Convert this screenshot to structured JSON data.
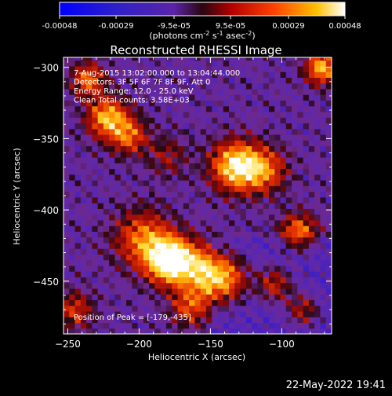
{
  "chart_data": {
    "type": "heatmap",
    "title": "Reconstructed RHESSI Image",
    "xlabel": "Heliocentric X (arcsec)",
    "ylabel": "Heliocentric Y (arcsec)",
    "xlim": [
      -253,
      -65
    ],
    "ylim": [
      -487,
      -293
    ],
    "x_ticks": [
      -250,
      -200,
      -150,
      -100
    ],
    "y_ticks": [
      -300,
      -350,
      -400,
      -450
    ],
    "colorbar": {
      "range": [
        -0.00048,
        0.00048
      ],
      "tick_values": [
        -0.00048,
        -0.00029,
        -9.5e-05,
        9.5e-05,
        0.00029,
        0.00048
      ],
      "tick_labels": [
        "-0.00048",
        "-0.00029",
        "-9.5e-05",
        "9.5e-05",
        "0.00029",
        "0.00048"
      ],
      "unit_label": "(photons cm",
      "unit_sup1": "-2",
      "unit_mid": " s",
      "unit_sup2": "-1",
      "unit_mid2": " asec",
      "unit_sup3": "-2",
      "unit_end": ")"
    },
    "info_lines": [
      "7-Aug-2015 13:02:00.000 to 13:04:44.000",
      "Detectors: 3F 5F 6F 7F 8F 9F, Att 0",
      "Energy Range: 12.0 - 25.0 keV",
      "Clean     Total counts: 3.58E+03"
    ],
    "peak_label": "Position of Peak = [-179,-435]",
    "peak": {
      "x": -179,
      "y": -435
    },
    "sources": [
      {
        "x": -179,
        "y": -435,
        "amp": 1.0,
        "sigma": 11
      },
      {
        "x": -197,
        "y": -420,
        "amp": 0.55,
        "sigma": 14
      },
      {
        "x": -142,
        "y": -448,
        "amp": 0.75,
        "sigma": 12
      },
      {
        "x": -160,
        "y": -440,
        "amp": 0.45,
        "sigma": 12
      },
      {
        "x": -132,
        "y": -369,
        "amp": 0.85,
        "sigma": 12
      },
      {
        "x": -112,
        "y": -372,
        "amp": 0.5,
        "sigma": 11
      },
      {
        "x": -222,
        "y": -335,
        "amp": 0.7,
        "sigma": 10
      },
      {
        "x": -236,
        "y": -308,
        "amp": 0.55,
        "sigma": 8
      },
      {
        "x": -207,
        "y": -348,
        "amp": 0.5,
        "sigma": 9
      },
      {
        "x": -72,
        "y": -300,
        "amp": 0.7,
        "sigma": 8
      },
      {
        "x": -88,
        "y": -415,
        "amp": 0.55,
        "sigma": 9
      },
      {
        "x": -105,
        "y": -452,
        "amp": 0.45,
        "sigma": 9
      },
      {
        "x": -85,
        "y": -470,
        "amp": 0.4,
        "sigma": 8
      },
      {
        "x": -245,
        "y": -470,
        "amp": 0.4,
        "sigma": 9
      },
      {
        "x": -165,
        "y": -468,
        "amp": 0.45,
        "sigma": 9
      },
      {
        "x": -180,
        "y": -362,
        "amp": 0.25,
        "sigma": 10
      }
    ],
    "timestamp": "22-May-2022 19:41"
  }
}
